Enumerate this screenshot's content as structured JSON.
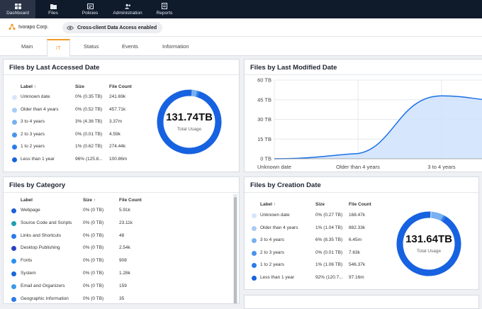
{
  "nav": {
    "items": [
      {
        "label": "Dashboard",
        "icon": "dashboard-icon"
      },
      {
        "label": "Files",
        "icon": "folder-icon"
      },
      {
        "label": "Policies",
        "icon": "policy-icon"
      },
      {
        "label": "Administration",
        "icon": "users-icon"
      },
      {
        "label": "Reports",
        "icon": "report-icon"
      }
    ]
  },
  "subbar": {
    "org": "Ivorapo Corp.",
    "chip": "Cross-client Data Access enabled"
  },
  "tabs": [
    {
      "label": "Main"
    },
    {
      "label": "IT"
    },
    {
      "label": "Status"
    },
    {
      "label": "Events"
    },
    {
      "label": "Information"
    }
  ],
  "colors": {
    "accent": "#f39c2b",
    "nav_bg": "#0f1a2b",
    "donut_primary": "#1a6fe8"
  },
  "accessed": {
    "title": "Files by Last Accessed Date",
    "headers": {
      "label": "Label ↑",
      "size": "Size",
      "count": "File Count"
    },
    "rows": [
      {
        "label": "Unknown date",
        "size": "0% (0.35 TB)",
        "count": "241.69k",
        "color": "#d6e6fb"
      },
      {
        "label": "Older than 4 years",
        "size": "0% (0.52 TB)",
        "count": "457.71k",
        "color": "#a8ccf6"
      },
      {
        "label": "3 to 4 years",
        "size": "3% (4.36 TB)",
        "count": "3.37m",
        "color": "#79b0f1"
      },
      {
        "label": "2 to 3 years",
        "size": "0% (0.01 TB)",
        "count": "4.59k",
        "color": "#4a92ec"
      },
      {
        "label": "1 to 2 years",
        "size": "1% (0.62 TB)",
        "count": "274.44k",
        "color": "#2a7aea"
      },
      {
        "label": "Less than 1 year",
        "size": "96% (125.8...",
        "count": "100.86m",
        "color": "#1762e0"
      }
    ],
    "total": "131.74TB",
    "total_label": "Total Usage"
  },
  "modified": {
    "title": "Files by Last Modified Date"
  },
  "chart_data": {
    "type": "area",
    "title": "Files by Last Modified Date",
    "categories": [
      "Unknown date",
      "Older than 4 years",
      "3 to 4 years"
    ],
    "y_ticks": [
      "0 TB",
      "15 TB",
      "30 TB",
      "45 TB",
      "60 TB"
    ],
    "ylim": [
      0,
      60
    ],
    "series": [
      {
        "values": [
          0,
          4,
          48
        ]
      }
    ],
    "grid": true
  },
  "category": {
    "title": "Files by Category",
    "headers": {
      "label": "Label",
      "size": "Size ↑",
      "count": "File Count"
    },
    "rows": [
      {
        "label": "Webpage",
        "size": "0% (0 TB)",
        "count": "5.91k",
        "color": "#1f5fd6"
      },
      {
        "label": "Source Code and Scripts",
        "size": "0% (0 TB)",
        "count": "23.11k",
        "color": "#1aa0b0"
      },
      {
        "label": "Links and Shortcuts",
        "size": "0% (0 TB)",
        "count": "48",
        "color": "#2a7aea"
      },
      {
        "label": "Desktop Publishing",
        "size": "0% (0 TB)",
        "count": "2.54k",
        "color": "#2b3fc9"
      },
      {
        "label": "Fonts",
        "size": "0% (0 TB)",
        "count": "908",
        "color": "#2a8ff0"
      },
      {
        "label": "System",
        "size": "0% (0 TB)",
        "count": "1.28k",
        "color": "#1768d8"
      },
      {
        "label": "Email and Organizers",
        "size": "0% (0 TB)",
        "count": "159",
        "color": "#3a9ae8"
      },
      {
        "label": "Geographic Information",
        "size": "0% (0 TB)",
        "count": "35",
        "color": "#2a7aea"
      }
    ]
  },
  "creation": {
    "title": "Files by Creation Date",
    "headers": {
      "label": "Label ↑",
      "size": "Size",
      "count": "File Count"
    },
    "rows": [
      {
        "label": "Unknown date",
        "size": "0% (0.27 TB)",
        "count": "168.47k",
        "color": "#d6e6fb"
      },
      {
        "label": "Older than 4 years",
        "size": "1% (1.04 TB)",
        "count": "882.33k",
        "color": "#a8ccf6"
      },
      {
        "label": "3 to 4 years",
        "size": "6% (8.35 TB)",
        "count": "6.45m",
        "color": "#79b0f1"
      },
      {
        "label": "2 to 3 years",
        "size": "0% (0.01 TB)",
        "count": "7.63k",
        "color": "#4a92ec"
      },
      {
        "label": "1 to 2 years",
        "size": "1% (1.06 TB)",
        "count": "546.37k",
        "color": "#2a7aea"
      },
      {
        "label": "Less than 1 year",
        "size": "92% (120.7...",
        "count": "97.16m",
        "color": "#1762e0"
      }
    ],
    "total": "131.64TB",
    "total_label": "Total Usage"
  }
}
